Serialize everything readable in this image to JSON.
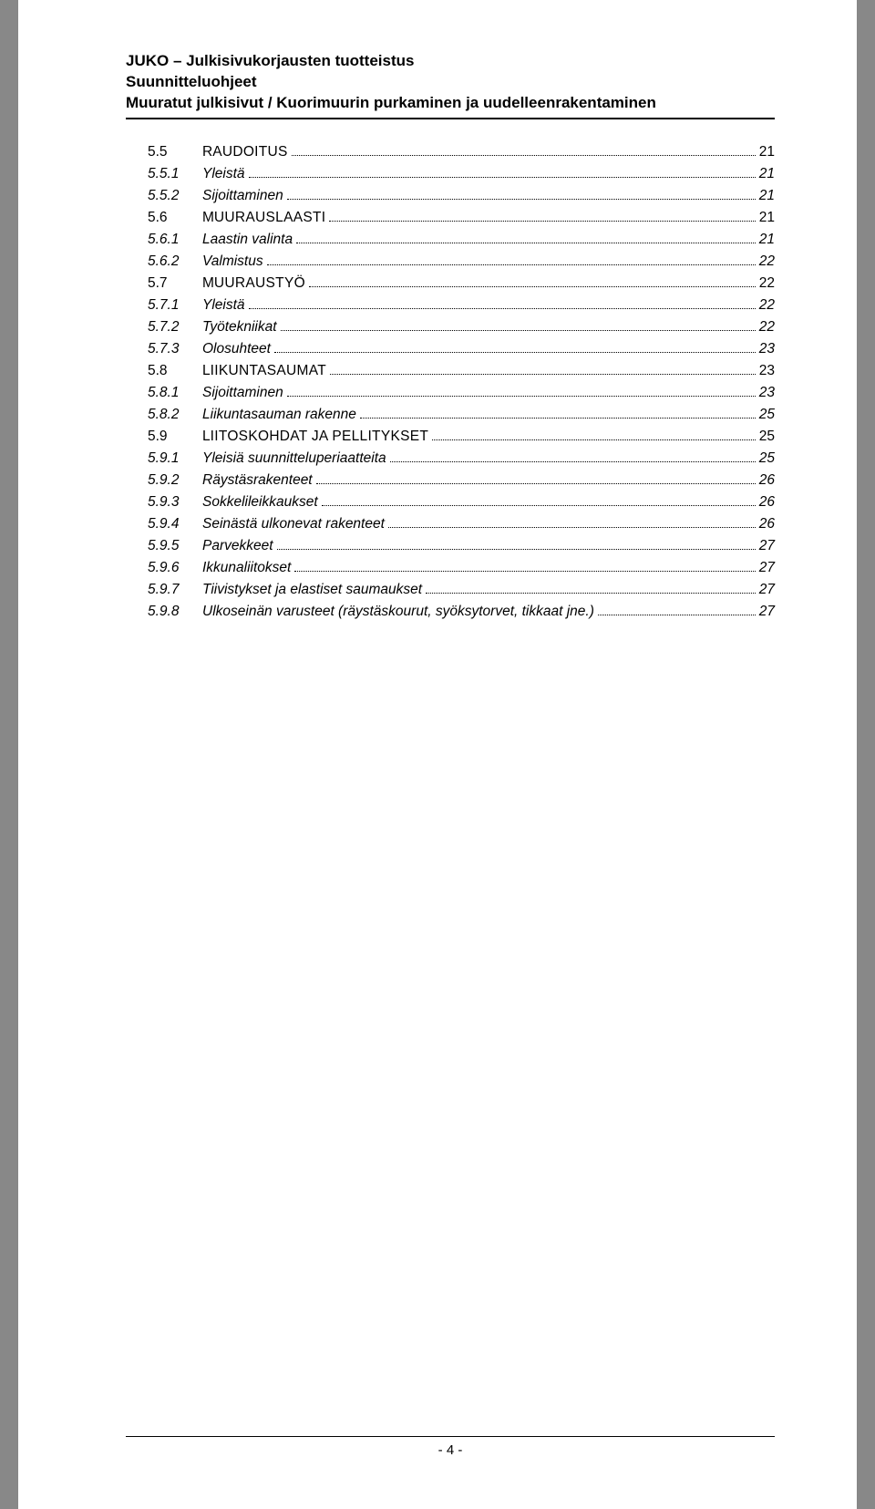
{
  "header": {
    "title": "JUKO – Julkisivukorjausten tuotteistus",
    "sub1": "Suunnitteluohjeet",
    "sub2": "Muuratut julkisivut / Kuorimuurin purkaminen ja uudelleenrakentaminen"
  },
  "toc": [
    {
      "level": 2,
      "num": "5.5",
      "label_first": "R",
      "label_rest": "AUDOITUS",
      "page": "21"
    },
    {
      "level": 3,
      "num": "5.5.1",
      "label": "Yleistä",
      "page": "21"
    },
    {
      "level": 3,
      "num": "5.5.2",
      "label": "Sijoittaminen",
      "page": "21"
    },
    {
      "level": 2,
      "num": "5.6",
      "label_first": "M",
      "label_rest": "UURAUSLAASTI",
      "page": "21"
    },
    {
      "level": 3,
      "num": "5.6.1",
      "label": "Laastin valinta",
      "page": "21"
    },
    {
      "level": 3,
      "num": "5.6.2",
      "label": "Valmistus",
      "page": "22"
    },
    {
      "level": 2,
      "num": "5.7",
      "label_first": "M",
      "label_rest": "UURAUSTYÖ",
      "page": "22"
    },
    {
      "level": 3,
      "num": "5.7.1",
      "label": "Yleistä",
      "page": "22"
    },
    {
      "level": 3,
      "num": "5.7.2",
      "label": "Työtekniikat",
      "page": "22"
    },
    {
      "level": 3,
      "num": "5.7.3",
      "label": "Olosuhteet",
      "page": "23"
    },
    {
      "level": 2,
      "num": "5.8",
      "label_first": "L",
      "label_rest": "IIKUNTASAUMAT",
      "page": "23"
    },
    {
      "level": 3,
      "num": "5.8.1",
      "label": "Sijoittaminen",
      "page": "23"
    },
    {
      "level": 3,
      "num": "5.8.2",
      "label": "Liikuntasauman rakenne",
      "page": "25"
    },
    {
      "level": 2,
      "num": "5.9",
      "label_first": "L",
      "label_rest": "IITOSKOHDAT JA PELLITYKSET",
      "page": "25"
    },
    {
      "level": 3,
      "num": "5.9.1",
      "label": "Yleisiä suunnitteluperiaatteita",
      "page": "25"
    },
    {
      "level": 3,
      "num": "5.9.2",
      "label": "Räystäsrakenteet",
      "page": "26"
    },
    {
      "level": 3,
      "num": "5.9.3",
      "label": "Sokkelileikkaukset",
      "page": "26"
    },
    {
      "level": 3,
      "num": "5.9.4",
      "label": "Seinästä ulkonevat rakenteet",
      "page": "26"
    },
    {
      "level": 3,
      "num": "5.9.5",
      "label": "Parvekkeet",
      "page": "27"
    },
    {
      "level": 3,
      "num": "5.9.6",
      "label": "Ikkunaliitokset",
      "page": "27"
    },
    {
      "level": 3,
      "num": "5.9.7",
      "label": "Tiivistykset ja elastiset saumaukset",
      "page": "27"
    },
    {
      "level": 3,
      "num": "5.9.8",
      "label": "Ulkoseinän varusteet (räystäskourut, syöksytorvet, tikkaat jne.)",
      "page": "27"
    }
  ],
  "footer": {
    "page_label": "- 4 -"
  }
}
